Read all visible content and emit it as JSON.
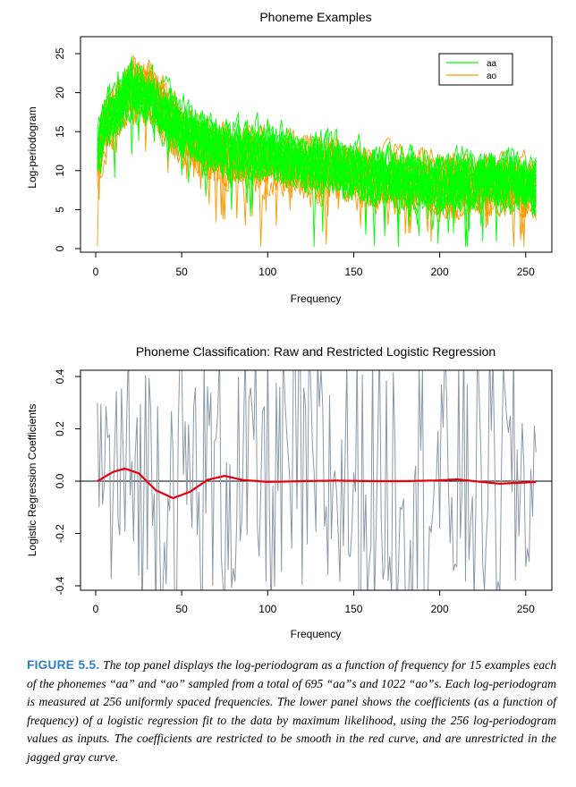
{
  "colors": {
    "aa": "#00ff00",
    "ao": "#ff9900",
    "raw": "#8a98a8",
    "restricted": "#e8000d",
    "caption_label": "#2f7fc2"
  },
  "chart_data": [
    {
      "type": "line",
      "title": "Phoneme Examples",
      "xlabel": "Frequency",
      "ylabel": "Log-periodogram",
      "xlim": [
        1,
        256
      ],
      "ylim": [
        0,
        25
      ],
      "xticks": [
        0,
        50,
        100,
        150,
        200,
        250
      ],
      "yticks": [
        0,
        5,
        10,
        15,
        20,
        25
      ],
      "legend_position": "top-right",
      "n_points": 256,
      "series": [
        {
          "name": "aa",
          "n_curves": 15,
          "mean_profile": {
            "x": [
              1,
              5,
              10,
              20,
              30,
              40,
              50,
              60,
              80,
              100,
              120,
              150,
              180,
              200,
              220,
              240,
              256
            ],
            "y": [
              12,
              16,
              18,
              20.5,
              19.5,
              17.5,
              15.5,
              14,
              12.5,
              12.5,
              11.5,
              10,
              9,
              8.5,
              9,
              8.5,
              8
            ]
          }
        },
        {
          "name": "ao",
          "n_curves": 15,
          "mean_profile": {
            "x": [
              1,
              5,
              10,
              20,
              30,
              40,
              50,
              60,
              80,
              100,
              120,
              150,
              180,
              200,
              220,
              240,
              256
            ],
            "y": [
              11,
              15,
              17,
              20,
              20,
              17.5,
              14.5,
              13,
              11.5,
              11,
              10.5,
              9.5,
              8.5,
              8,
              8,
              8,
              7.5
            ]
          }
        }
      ]
    },
    {
      "type": "line",
      "title": "Phoneme Classification: Raw and Restricted Logistic Regression",
      "xlabel": "Frequency",
      "ylabel": "Logistic Regression Coefficients",
      "xlim": [
        1,
        256
      ],
      "ylim": [
        -0.4,
        0.4
      ],
      "xticks": [
        0,
        50,
        100,
        150,
        200,
        250
      ],
      "yticks": [
        -0.4,
        -0.2,
        0.0,
        0.2,
        0.4
      ],
      "ytick_labels": [
        "-0.4",
        "-0.2",
        "0.0",
        "0.2",
        "0.4"
      ],
      "reference_line_y": 0.0,
      "series": [
        {
          "key": "raw",
          "style": "jagged gray",
          "x_start": 1,
          "x_end": 256,
          "amplitude_range": [
            -0.45,
            0.45
          ]
        },
        {
          "key": "restricted",
          "style": "smooth red",
          "x": [
            1,
            10,
            17,
            25,
            35,
            45,
            55,
            65,
            75,
            85,
            100,
            120,
            140,
            160,
            180,
            200,
            210,
            220,
            235,
            250,
            256
          ],
          "y": [
            0.0,
            0.035,
            0.048,
            0.03,
            -0.035,
            -0.065,
            -0.04,
            0.005,
            0.02,
            0.005,
            -0.003,
            0.0,
            0.002,
            0.0,
            0.0,
            0.003,
            0.007,
            0.0,
            -0.01,
            -0.005,
            -0.003
          ]
        }
      ]
    }
  ],
  "caption": {
    "label": "FIGURE 5.5.",
    "text": "The top panel displays the log-periodogram as a function of frequency for 15 examples each of the phonemes “aa” and “ao” sampled from a total of 695 “aa”s and 1022 “ao”s. Each log-periodogram is measured at 256 uniformly spaced frequencies. The lower panel shows the coefficients (as a function of frequency) of a logistic regression fit to the data by maximum likelihood, using the 256 log-periodogram values as inputs. The coefficients are restricted to be smooth in the red curve, and are unrestricted in the jagged gray curve."
  }
}
